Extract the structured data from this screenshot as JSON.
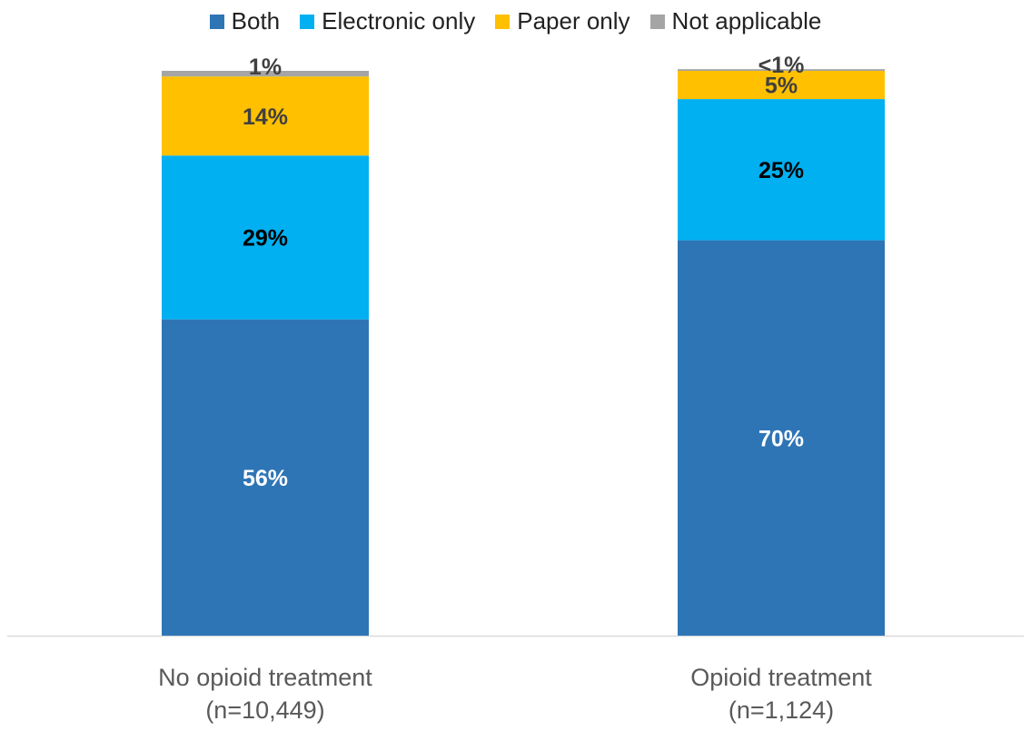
{
  "chart_data": {
    "type": "bar",
    "stacked": true,
    "title": "",
    "xlabel": "",
    "ylabel": "",
    "ylim": [
      0,
      100
    ],
    "grid": false,
    "legend_position": "top",
    "categories": [
      [
        "No opioid treatment",
        "(n=10,449)"
      ],
      [
        "Opioid treatment",
        "(n=1,124)"
      ]
    ],
    "series": [
      {
        "name": "Both",
        "color": "#2E75B6",
        "label_color": "#FFFFFF",
        "values": [
          56,
          70
        ],
        "labels": [
          "56%",
          "70%"
        ]
      },
      {
        "name": "Electronic only",
        "color": "#00B0F0",
        "label_color": "#000000",
        "values": [
          29,
          25
        ],
        "labels": [
          "29%",
          "25%"
        ]
      },
      {
        "name": "Paper only",
        "color": "#FFC000",
        "label_color": "#404040",
        "values": [
          14,
          5
        ],
        "labels": [
          "14%",
          "5%"
        ]
      },
      {
        "name": "Not applicable",
        "color": "#A5A5A5",
        "label_color": "#404040",
        "values": [
          1,
          0.3
        ],
        "labels": [
          "1%",
          "<1%"
        ]
      }
    ]
  }
}
